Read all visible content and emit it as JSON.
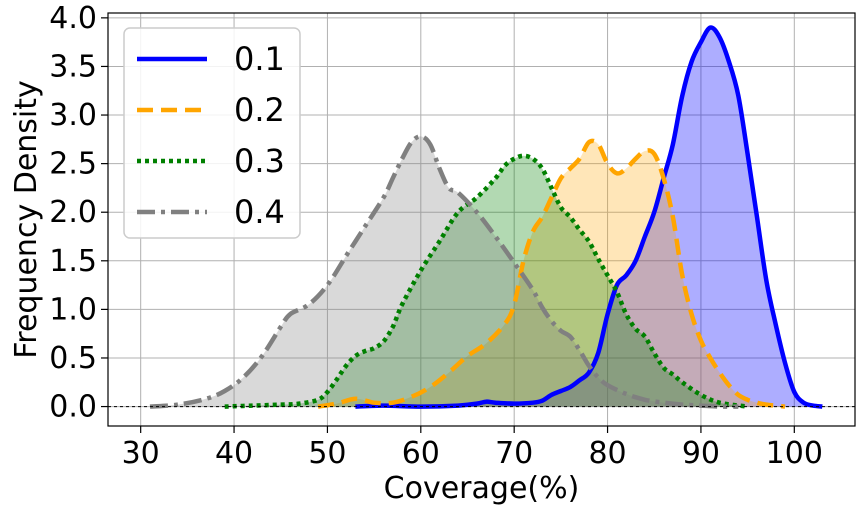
{
  "chart_data": {
    "type": "area",
    "title": "",
    "xlabel": "Coverage(%)",
    "ylabel": "Frequency Density",
    "xlim": [
      26.5,
      106.5
    ],
    "ylim": [
      -0.2,
      4.05
    ],
    "xticks": [
      30,
      40,
      50,
      60,
      70,
      80,
      90,
      100
    ],
    "xtick_labels": [
      "30",
      "40",
      "50",
      "60",
      "70",
      "80",
      "90",
      "100"
    ],
    "yticks": [
      0.0,
      0.5,
      1.0,
      1.5,
      2.0,
      2.5,
      3.0,
      3.5,
      4.0
    ],
    "ytick_labels": [
      "0.0",
      "0.5",
      "1.0",
      "1.5",
      "2.0",
      "2.5",
      "3.0",
      "3.5",
      "4.0"
    ],
    "grid": true,
    "baseline": 0,
    "legend": {
      "placement": "top-left"
    },
    "series": [
      {
        "name": "0.1",
        "color": "#0000ff",
        "fill": "#0000ff",
        "fill_opacity": 0.32,
        "dash": "solid",
        "x": [
          53,
          56,
          60,
          64,
          66,
          67,
          68,
          70,
          72,
          73,
          74,
          75,
          76,
          77,
          78,
          79,
          80,
          81,
          82,
          83,
          84,
          85,
          86,
          87,
          88,
          89,
          90,
          91,
          92,
          93,
          94,
          95,
          96,
          97,
          98,
          99,
          100,
          101,
          102,
          103
        ],
        "y": [
          0.0,
          0.01,
          0.0,
          0.01,
          0.03,
          0.05,
          0.04,
          0.03,
          0.04,
          0.06,
          0.12,
          0.16,
          0.2,
          0.27,
          0.35,
          0.55,
          0.95,
          1.25,
          1.35,
          1.5,
          1.75,
          2.0,
          2.35,
          2.7,
          3.2,
          3.55,
          3.75,
          3.9,
          3.8,
          3.55,
          3.2,
          2.6,
          1.95,
          1.3,
          0.85,
          0.45,
          0.15,
          0.04,
          0.01,
          0.0
        ]
      },
      {
        "name": "0.2",
        "color": "#ffa500",
        "fill": "#ffa500",
        "fill_opacity": 0.28,
        "dash": "dashed",
        "x": [
          49,
          51,
          53,
          55,
          57,
          59,
          61,
          63,
          65,
          67,
          69,
          70,
          71,
          72,
          73,
          74,
          75,
          76,
          77,
          78,
          79,
          80,
          81,
          82,
          83,
          84,
          85,
          86,
          87,
          88,
          89,
          90,
          91,
          92,
          93,
          94,
          95,
          96,
          97,
          99
        ],
        "y": [
          0.0,
          0.03,
          0.08,
          0.04,
          0.04,
          0.1,
          0.2,
          0.35,
          0.52,
          0.65,
          0.85,
          1.05,
          1.5,
          1.8,
          1.95,
          2.15,
          2.35,
          2.45,
          2.55,
          2.72,
          2.7,
          2.5,
          2.4,
          2.45,
          2.55,
          2.63,
          2.6,
          2.35,
          1.95,
          1.35,
          0.95,
          0.68,
          0.5,
          0.35,
          0.22,
          0.12,
          0.07,
          0.04,
          0.02,
          0.0
        ]
      },
      {
        "name": "0.3",
        "color": "#008000",
        "fill": "#008000",
        "fill_opacity": 0.3,
        "dash": "dotted",
        "x": [
          39,
          42,
          45,
          47,
          49,
          50,
          51,
          52,
          53,
          54,
          55,
          56,
          57,
          58,
          60,
          62,
          64,
          66,
          68,
          69,
          70,
          71,
          72,
          73,
          74,
          75,
          76,
          77,
          78,
          79,
          80,
          81,
          82,
          83,
          84,
          85,
          86,
          87,
          88,
          90,
          92,
          95
        ],
        "y": [
          0.0,
          0.01,
          0.02,
          0.03,
          0.07,
          0.15,
          0.28,
          0.42,
          0.52,
          0.57,
          0.6,
          0.67,
          0.82,
          1.05,
          1.4,
          1.7,
          2.0,
          2.15,
          2.35,
          2.48,
          2.55,
          2.58,
          2.55,
          2.45,
          2.25,
          2.05,
          1.95,
          1.82,
          1.7,
          1.52,
          1.35,
          1.18,
          0.95,
          0.8,
          0.72,
          0.55,
          0.4,
          0.33,
          0.25,
          0.12,
          0.04,
          0.0
        ]
      },
      {
        "name": "0.4",
        "color": "#808080",
        "fill": "#808080",
        "fill_opacity": 0.3,
        "dash": "dashdot",
        "x": [
          31,
          34,
          37,
          39,
          41,
          43,
          45,
          46,
          48,
          50,
          52,
          54,
          56,
          57,
          58,
          59,
          60,
          61,
          62,
          63,
          64,
          66,
          68,
          70,
          72,
          73,
          74,
          75,
          76,
          77,
          78,
          79,
          80,
          82,
          84,
          86,
          88,
          90,
          92,
          94
        ],
        "y": [
          0.0,
          0.02,
          0.08,
          0.16,
          0.3,
          0.52,
          0.82,
          0.95,
          1.05,
          1.25,
          1.55,
          1.85,
          2.15,
          2.35,
          2.55,
          2.72,
          2.78,
          2.7,
          2.45,
          2.25,
          2.2,
          2.0,
          1.75,
          1.48,
          1.2,
          1.02,
          0.88,
          0.78,
          0.72,
          0.58,
          0.42,
          0.3,
          0.22,
          0.13,
          0.07,
          0.04,
          0.02,
          0.01,
          0.0,
          0.0
        ]
      }
    ]
  }
}
